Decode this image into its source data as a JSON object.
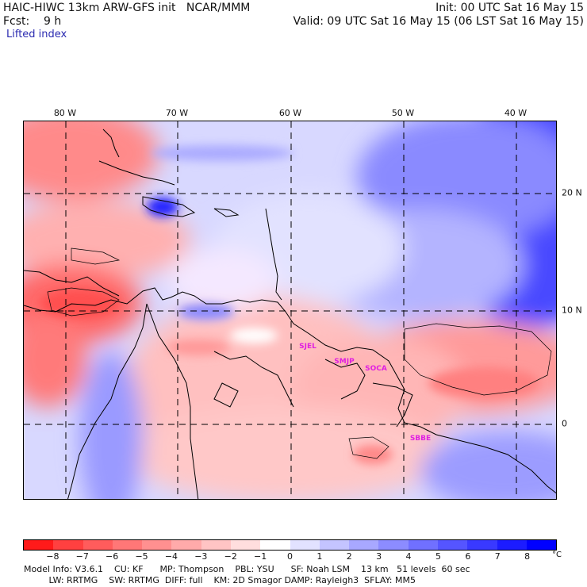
{
  "header": {
    "model_line": "HAIC-HIWC 13km ARW-GFS init   NCAR/MMM",
    "fcst_line": "Fcst:    9 h",
    "field": "Lifted index",
    "init": "Init: 00 UTC Sat 16 May 15",
    "valid": "Valid: 09 UTC Sat 16 May 15 (06 LST Sat 16 May 15)"
  },
  "axes": {
    "longitude_labels": [
      "80 W",
      "70 W",
      "60 W",
      "50 W",
      "40 W"
    ],
    "latitude_labels": [
      "20 N",
      "10 N",
      "0"
    ]
  },
  "stations": [
    "SJEL",
    "SMJP",
    "SOCA",
    "SBBE"
  ],
  "colorbar": {
    "ticks": [
      "−8",
      "−7",
      "−6",
      "−5",
      "−4",
      "−3",
      "−2",
      "−1",
      "0",
      "1",
      "2",
      "3",
      "4",
      "5",
      "6",
      "7",
      "8"
    ],
    "unit": "°C",
    "colors": [
      "#ff1a1a",
      "#ff4040",
      "#ff5c5c",
      "#ff7777",
      "#ff9090",
      "#ffaaaa",
      "#ffc4c4",
      "#ffdede",
      "#ffffff",
      "#e2e2ff",
      "#c4c4ff",
      "#a8a8ff",
      "#8c8cff",
      "#7070ff",
      "#5555ff",
      "#3939ff",
      "#1c1cff",
      "#0000ff"
    ]
  },
  "footer": {
    "line1": "Model Info: V3.6.1    CU: KF      MP: Thompson    PBL: YSU      SF: Noah LSM    13 km   51 levels  60 sec",
    "line2": "         LW: RRTMG    SW: RRTMG  DIFF: full    KM: 2D Smagor DAMP: Rayleigh3  SFLAY: MM5"
  }
}
